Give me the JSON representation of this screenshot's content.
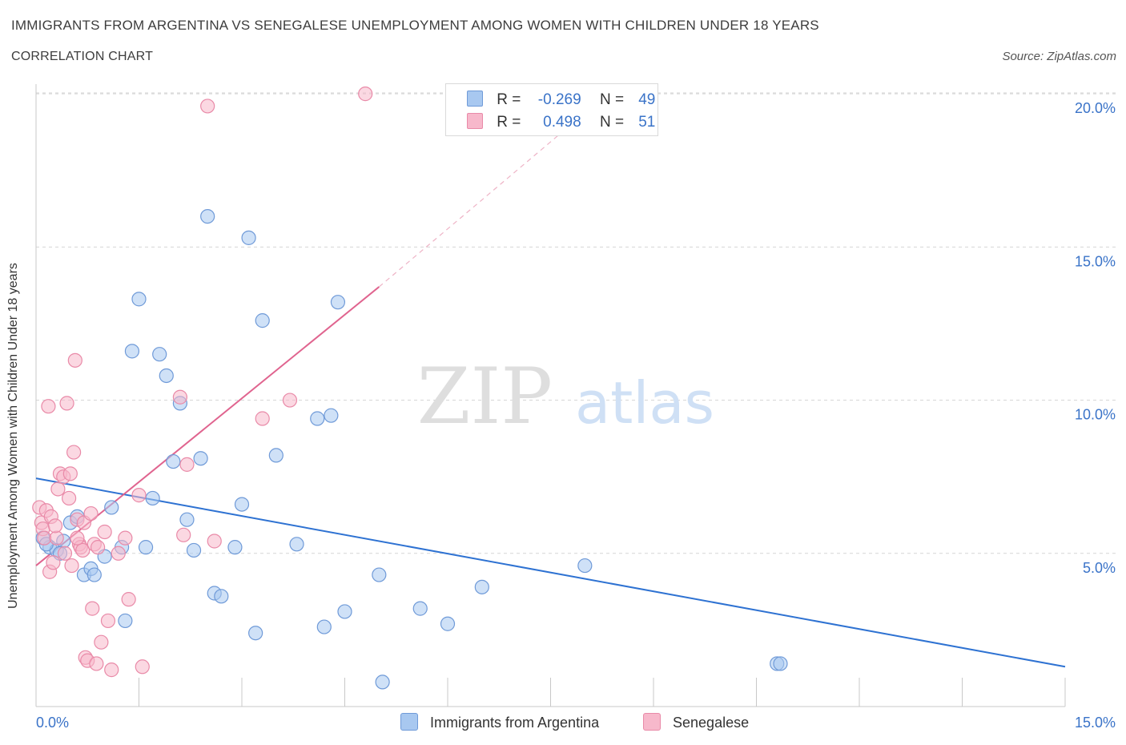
{
  "header": {
    "title": "IMMIGRANTS FROM ARGENTINA VS SENEGALESE UNEMPLOYMENT AMONG WOMEN WITH CHILDREN UNDER 18 YEARS",
    "subtitle": "CORRELATION CHART",
    "source": "Source: ZipAtlas.com"
  },
  "legend_stats": {
    "argentina": {
      "r_label": "R =",
      "r_value": "-0.269",
      "n_label": "N =",
      "n_value": "49"
    },
    "senegalese": {
      "r_label": "R =",
      "r_value": "0.498",
      "n_label": "N =",
      "n_value": "51"
    }
  },
  "colors": {
    "argentina_fill": "#a8c8f0",
    "argentina_stroke": "#6f9ad8",
    "argentina_line": "#2e72d2",
    "senegalese_fill": "#f7b8cb",
    "senegalese_stroke": "#e98aa8",
    "senegalese_line": "#e0648f",
    "axis_text": "#3a73c8",
    "grid": "#d6d6d6"
  },
  "chart_data": {
    "type": "scatter",
    "title": "IMMIGRANTS FROM ARGENTINA VS SENEGALESE UNEMPLOYMENT AMONG WOMEN WITH CHILDREN UNDER 18 YEARS",
    "xlabel": "",
    "ylabel": "Unemployment Among Women with Children Under 18 years",
    "xlim": [
      0,
      15
    ],
    "ylim": [
      0,
      20.5
    ],
    "x_tick_labels": [
      "0.0%",
      "15.0%"
    ],
    "y_ticks": [
      5,
      10,
      15,
      20
    ],
    "y_tick_labels": [
      "5.0%",
      "10.0%",
      "15.0%",
      "20.0%"
    ],
    "grid": true,
    "legend_placement": "bottom-center",
    "watermark": "ZIPatlas",
    "series": [
      {
        "name": "Immigrants from Argentina",
        "r": -0.269,
        "n": 49,
        "trend": {
          "x0": 0,
          "y0": 7.45,
          "x1": 15,
          "y1": 1.3
        },
        "points": [
          [
            0.1,
            5.5
          ],
          [
            0.2,
            5.2
          ],
          [
            0.3,
            5.1
          ],
          [
            0.4,
            5.4
          ],
          [
            0.5,
            6.0
          ],
          [
            0.6,
            6.2
          ],
          [
            0.7,
            4.3
          ],
          [
            0.8,
            4.5
          ],
          [
            0.85,
            4.3
          ],
          [
            1.0,
            4.9
          ],
          [
            1.1,
            6.5
          ],
          [
            1.25,
            5.2
          ],
          [
            1.3,
            2.8
          ],
          [
            1.4,
            11.6
          ],
          [
            1.5,
            13.3
          ],
          [
            1.6,
            5.2
          ],
          [
            1.7,
            6.8
          ],
          [
            1.8,
            11.5
          ],
          [
            1.9,
            10.8
          ],
          [
            2.0,
            8.0
          ],
          [
            2.1,
            9.9
          ],
          [
            2.2,
            6.1
          ],
          [
            2.3,
            5.1
          ],
          [
            2.4,
            8.1
          ],
          [
            2.5,
            16.0
          ],
          [
            2.6,
            3.7
          ],
          [
            2.7,
            3.6
          ],
          [
            2.9,
            5.2
          ],
          [
            3.0,
            6.6
          ],
          [
            3.1,
            15.3
          ],
          [
            3.2,
            2.4
          ],
          [
            3.3,
            12.6
          ],
          [
            3.5,
            8.2
          ],
          [
            3.8,
            5.3
          ],
          [
            4.1,
            9.4
          ],
          [
            4.2,
            2.6
          ],
          [
            4.3,
            9.5
          ],
          [
            4.4,
            13.2
          ],
          [
            4.5,
            3.1
          ],
          [
            5.0,
            4.3
          ],
          [
            5.05,
            0.8
          ],
          [
            5.6,
            3.2
          ],
          [
            6.0,
            2.7
          ],
          [
            6.5,
            3.9
          ],
          [
            8.0,
            4.6
          ],
          [
            10.8,
            1.4
          ],
          [
            10.85,
            1.4
          ],
          [
            0.15,
            5.3
          ],
          [
            0.35,
            5.0
          ]
        ]
      },
      {
        "name": "Senegalese",
        "r": 0.498,
        "n": 51,
        "trend": {
          "x0": 0,
          "y0": 4.6,
          "x1": 5.0,
          "y1": 13.7,
          "dash_to_x": 7.8,
          "dash_to_y": 19.0
        },
        "points": [
          [
            0.05,
            6.5
          ],
          [
            0.08,
            6.0
          ],
          [
            0.1,
            5.8
          ],
          [
            0.12,
            5.5
          ],
          [
            0.15,
            6.4
          ],
          [
            0.18,
            9.8
          ],
          [
            0.2,
            4.4
          ],
          [
            0.25,
            4.7
          ],
          [
            0.3,
            5.5
          ],
          [
            0.32,
            7.1
          ],
          [
            0.35,
            7.6
          ],
          [
            0.4,
            7.5
          ],
          [
            0.45,
            9.9
          ],
          [
            0.48,
            6.8
          ],
          [
            0.5,
            7.6
          ],
          [
            0.52,
            4.6
          ],
          [
            0.55,
            8.3
          ],
          [
            0.57,
            11.3
          ],
          [
            0.6,
            6.1
          ],
          [
            0.63,
            5.3
          ],
          [
            0.65,
            5.2
          ],
          [
            0.68,
            5.1
          ],
          [
            0.7,
            6.0
          ],
          [
            0.72,
            1.6
          ],
          [
            0.75,
            1.5
          ],
          [
            0.8,
            6.3
          ],
          [
            0.82,
            3.2
          ],
          [
            0.85,
            5.3
          ],
          [
            0.88,
            1.4
          ],
          [
            0.95,
            2.1
          ],
          [
            1.0,
            5.7
          ],
          [
            1.05,
            2.8
          ],
          [
            1.1,
            1.2
          ],
          [
            1.3,
            5.5
          ],
          [
            1.35,
            3.5
          ],
          [
            1.5,
            6.9
          ],
          [
            1.55,
            1.3
          ],
          [
            2.1,
            10.1
          ],
          [
            2.15,
            5.6
          ],
          [
            2.2,
            7.9
          ],
          [
            2.6,
            5.4
          ],
          [
            2.5,
            19.6
          ],
          [
            3.3,
            9.4
          ],
          [
            3.7,
            10.0
          ],
          [
            4.8,
            20.0
          ],
          [
            0.22,
            6.2
          ],
          [
            0.28,
            5.9
          ],
          [
            0.42,
            5.0
          ],
          [
            0.6,
            5.5
          ],
          [
            0.9,
            5.2
          ],
          [
            1.2,
            5.0
          ]
        ]
      }
    ]
  },
  "bottom_legend": {
    "argentina_label": "Immigrants from Argentina",
    "senegalese_label": "Senegalese"
  }
}
